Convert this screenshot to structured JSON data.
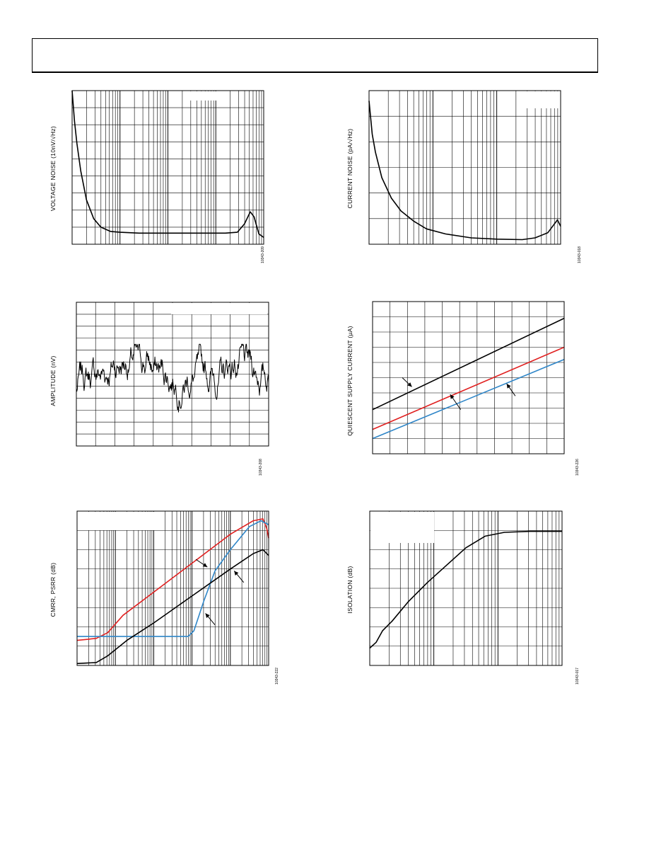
{
  "colors": {
    "black": "#000000",
    "red": "#e02020",
    "blue": "#2f86c8"
  },
  "chart_data": [
    {
      "id": "voltage-noise",
      "type": "line",
      "ylabel": "VOLTAGE NOISE (10nV/√Hz)",
      "figure_code": "10343-209",
      "grid": true,
      "x_scale": "log",
      "x_decades": 4,
      "y_divisions": 9,
      "series": [
        {
          "color": "black",
          "points": [
            [
              0,
              9
            ],
            [
              0.05,
              7.2
            ],
            [
              0.1,
              5.9
            ],
            [
              0.18,
              4.3
            ],
            [
              0.3,
              2.6
            ],
            [
              0.45,
              1.5
            ],
            [
              0.6,
              1.0
            ],
            [
              0.8,
              0.75
            ],
            [
              1.0,
              0.7
            ],
            [
              1.4,
              0.65
            ],
            [
              2.0,
              0.65
            ],
            [
              3.2,
              0.65
            ],
            [
              3.45,
              0.7
            ],
            [
              3.6,
              1.2
            ],
            [
              3.72,
              1.9
            ],
            [
              3.8,
              1.6
            ],
            [
              3.9,
              0.6
            ],
            [
              4.0,
              0.4
            ]
          ]
        }
      ]
    },
    {
      "id": "current-noise",
      "type": "line",
      "ylabel": "CURRENT NOISE (pA/√Hz)",
      "figure_code": "10343-018",
      "grid": true,
      "x_scale": "log",
      "x_decades": 3,
      "y_divisions": 6,
      "series": [
        {
          "color": "black",
          "points": [
            [
              0,
              5.6
            ],
            [
              0.05,
              4.3
            ],
            [
              0.1,
              3.6
            ],
            [
              0.2,
              2.6
            ],
            [
              0.35,
              1.8
            ],
            [
              0.5,
              1.3
            ],
            [
              0.7,
              0.9
            ],
            [
              0.9,
              0.6
            ],
            [
              1.2,
              0.4
            ],
            [
              1.6,
              0.25
            ],
            [
              2.0,
              0.2
            ],
            [
              2.4,
              0.18
            ],
            [
              2.6,
              0.25
            ],
            [
              2.8,
              0.45
            ],
            [
              2.95,
              0.95
            ],
            [
              3.0,
              0.7
            ]
          ]
        }
      ]
    },
    {
      "id": "amplitude",
      "type": "line",
      "ylabel": "AMPLITUDE (nV)",
      "figure_code": "10343-208",
      "grid": true,
      "x_range": [
        0,
        10
      ],
      "y_range": [
        -6,
        6
      ],
      "x_divisions": 10,
      "y_divisions": 12,
      "series": [
        {
          "color": "black",
          "noise_seed": 7,
          "noise_points": 400
        }
      ]
    },
    {
      "id": "quiescent-current",
      "type": "line",
      "ylabel": "QUIESCENT SUPPLY CURRENT (µA)",
      "figure_code": "10343-226",
      "grid": true,
      "x_range": [
        0,
        10
      ],
      "y_range": [
        0,
        10
      ],
      "x_divisions": 11,
      "y_divisions": 10,
      "series": [
        {
          "color": "black",
          "x": [
            0,
            10
          ],
          "y": [
            2.9,
            8.9
          ]
        },
        {
          "color": "red",
          "x": [
            0,
            10
          ],
          "y": [
            1.6,
            7.0
          ]
        },
        {
          "color": "blue",
          "x": [
            0,
            10
          ],
          "y": [
            1.0,
            6.2
          ]
        }
      ],
      "arrows": [
        [
          1.55,
          5.0,
          2.05,
          4.4
        ],
        [
          4.6,
          2.9,
          4.05,
          3.9
        ],
        [
          7.45,
          3.8,
          7.0,
          4.6
        ]
      ]
    },
    {
      "id": "cmrr-psrr",
      "type": "line",
      "ylabel": "CMRR, PSRR (dB)",
      "figure_code": "10343-222",
      "grid": true,
      "x_scale": "log",
      "x_decades": 5,
      "y_divisions": 8,
      "series": [
        {
          "color": "red",
          "points": [
            [
              0,
              1.3
            ],
            [
              0.5,
              1.4
            ],
            [
              0.8,
              1.7
            ],
            [
              1.2,
              2.6
            ],
            [
              2.0,
              3.8
            ],
            [
              3.0,
              5.3
            ],
            [
              4.0,
              6.8
            ],
            [
              4.6,
              7.5
            ],
            [
              4.85,
              7.6
            ],
            [
              4.95,
              7.1
            ],
            [
              5.0,
              6.6
            ]
          ]
        },
        {
          "color": "blue",
          "points": [
            [
              0,
              1.5
            ],
            [
              1.5,
              1.5
            ],
            [
              2.9,
              1.5
            ],
            [
              3.05,
              1.8
            ],
            [
              3.3,
              3.3
            ],
            [
              3.6,
              4.9
            ],
            [
              4.0,
              6.0
            ],
            [
              4.5,
              7.2
            ],
            [
              4.8,
              7.5
            ],
            [
              5.0,
              7.3
            ]
          ]
        },
        {
          "color": "black",
          "points": [
            [
              0,
              0.1
            ],
            [
              0.5,
              0.15
            ],
            [
              0.8,
              0.5
            ],
            [
              1.3,
              1.3
            ],
            [
              2.0,
              2.2
            ],
            [
              3.0,
              3.6
            ],
            [
              4.0,
              5.0
            ],
            [
              4.6,
              5.8
            ],
            [
              4.85,
              6.0
            ],
            [
              5.0,
              5.7
            ]
          ]
        }
      ],
      "arrows": [
        [
          3.1,
          5.5,
          3.4,
          5.1
        ],
        [
          4.35,
          4.3,
          4.1,
          4.9
        ],
        [
          3.6,
          2.1,
          3.35,
          2.7
        ]
      ]
    },
    {
      "id": "isolation",
      "type": "line",
      "ylabel": "ISOLATION (dB)",
      "figure_code": "10343-017",
      "grid": true,
      "x_scale": "log",
      "x_decades": 3,
      "y_divisions": 8,
      "series": [
        {
          "color": "black",
          "points": [
            [
              0,
              0.9
            ],
            [
              0.1,
              1.2
            ],
            [
              0.2,
              1.8
            ],
            [
              0.35,
              2.3
            ],
            [
              0.6,
              3.3
            ],
            [
              0.9,
              4.3
            ],
            [
              1.2,
              5.2
            ],
            [
              1.5,
              6.1
            ],
            [
              1.8,
              6.7
            ],
            [
              2.1,
              6.9
            ],
            [
              2.5,
              6.95
            ],
            [
              3.0,
              6.95
            ]
          ]
        }
      ]
    }
  ]
}
